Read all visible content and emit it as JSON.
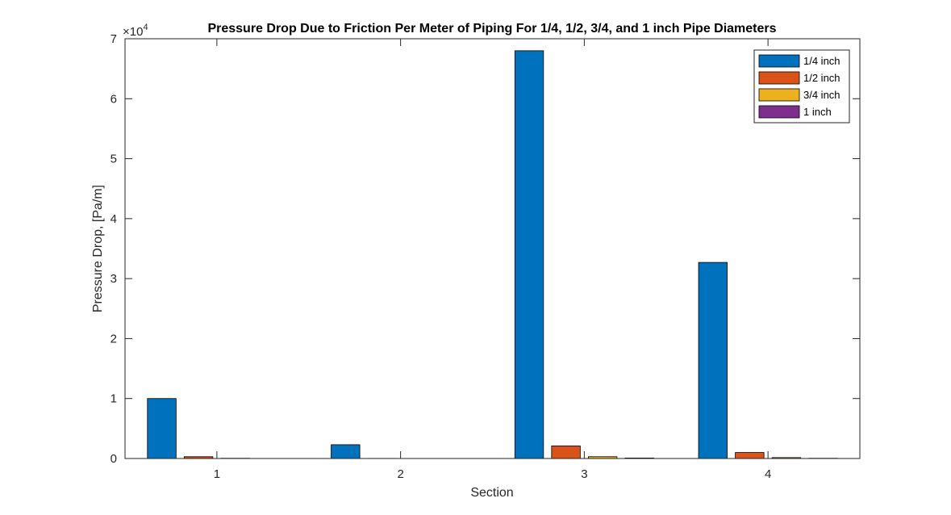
{
  "chart_data": {
    "type": "bar",
    "title": "Pressure Drop Due to Friction Per Meter of Piping For 1/4, 1/2, 3/4, and 1 inch Pipe Diameters",
    "xlabel": "Section",
    "ylabel": "Pressure Drop, [Pa/m]",
    "categories": [
      "1",
      "2",
      "3",
      "4"
    ],
    "ylim": [
      0,
      70000
    ],
    "yticks": [
      0,
      10000,
      20000,
      30000,
      40000,
      50000,
      60000,
      70000
    ],
    "ytick_labels": [
      "0",
      "1",
      "2",
      "3",
      "4",
      "5",
      "6",
      "7"
    ],
    "y_exponent_prefix": "×10",
    "y_exponent_power": "4",
    "legend_position": "top-right",
    "grid": false,
    "series": [
      {
        "name": "1/4 inch",
        "color": "#0072BD",
        "values": [
          10000,
          2300,
          68000,
          32700
        ]
      },
      {
        "name": "1/2 inch",
        "color": "#D95319",
        "values": [
          300,
          20,
          2100,
          1000
        ]
      },
      {
        "name": "3/4 inch",
        "color": "#EDB120",
        "values": [
          40,
          3,
          300,
          150
        ]
      },
      {
        "name": "1 inch",
        "color": "#7E2F8E",
        "values": [
          10,
          1,
          80,
          40
        ]
      }
    ]
  }
}
